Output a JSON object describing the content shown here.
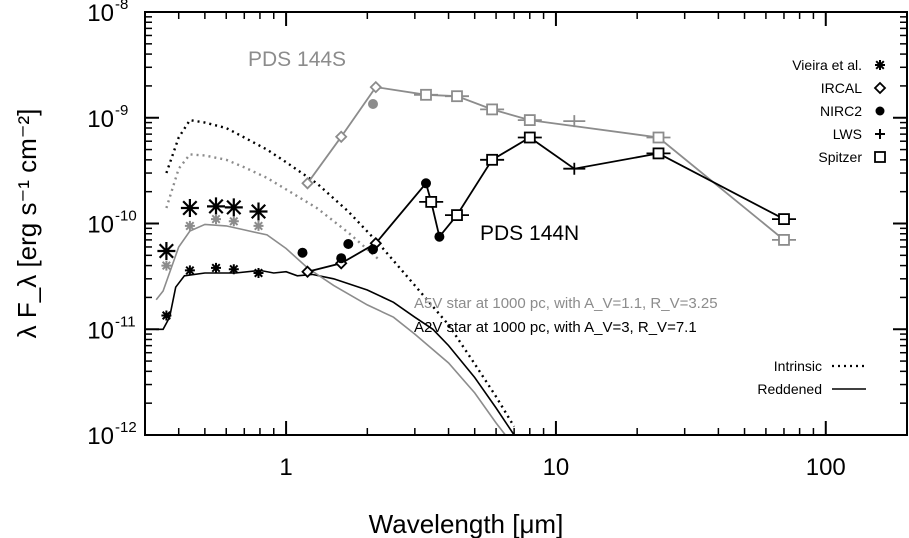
{
  "chart_data": {
    "type": "scatter",
    "xlabel": "Wavelength [μm]",
    "ylabel": "λ F_λ [erg s⁻¹ cm⁻²]",
    "xscale": "log",
    "yscale": "log",
    "xlim": [
      0.3,
      200
    ],
    "ylim": [
      1e-12,
      1e-08
    ],
    "x_ticks": [
      1,
      10,
      100
    ],
    "x_tick_labels": [
      "1",
      "10",
      "100"
    ],
    "y_ticks": [
      1e-12,
      1e-11,
      1e-10,
      1e-09,
      1e-08
    ],
    "y_tick_labels": [
      {
        "base": "10",
        "exp": "-12"
      },
      {
        "base": "10",
        "exp": "-11"
      },
      {
        "base": "10",
        "exp": "-10"
      },
      {
        "base": "10",
        "exp": "-9"
      },
      {
        "base": "10",
        "exp": "-8"
      }
    ],
    "grid": false,
    "legend": {
      "position": "top-right",
      "markers": [
        {
          "label": "Vieira et al.",
          "symbol": "asterisk"
        },
        {
          "label": "IRCAL",
          "symbol": "diamond"
        },
        {
          "label": "NIRC2",
          "symbol": "circle"
        },
        {
          "label": "LWS",
          "symbol": "plus"
        },
        {
          "label": "Spitzer",
          "symbol": "square"
        }
      ],
      "lines": [
        {
          "label": "Intrinsic",
          "style": "dotted"
        },
        {
          "label": "Reddened",
          "style": "solid"
        }
      ]
    },
    "annotations": [
      {
        "text": "PDS 144S",
        "color": "#8c8c8c"
      },
      {
        "text": "PDS 144N",
        "color": "#000000"
      },
      {
        "text": "A5V star at 1000 pc, with A_V=1.1, R_V=3.25",
        "color": "#8c8c8c"
      },
      {
        "text": "A2V star at 1000 pc, with A_V=3, R_V=7.1",
        "color": "#000000"
      }
    ],
    "colors": {
      "pds144s": "#8c8c8c",
      "pds144n": "#000000"
    },
    "series": [
      {
        "name": "PDS 144S",
        "kind": "connected",
        "color": "#8c8c8c",
        "points": [
          [
            1.2,
            2.4e-10
          ],
          [
            1.6,
            6.6e-10
          ],
          [
            2.15,
            1.95e-09
          ],
          [
            3.3,
            1.65e-09
          ],
          [
            4.3,
            1.6e-09
          ],
          [
            5.8,
            1.2e-09
          ],
          [
            8.0,
            9.5e-10
          ],
          [
            24,
            6.5e-10
          ],
          [
            70,
            7e-11
          ]
        ],
        "markers": [
          {
            "x": 1.2,
            "y": 2.4e-10,
            "symbol": "diamond"
          },
          {
            "x": 1.6,
            "y": 6.6e-10,
            "symbol": "diamond"
          },
          {
            "x": 2.15,
            "y": 1.95e-09,
            "symbol": "diamond"
          },
          {
            "x": 2.1,
            "y": 1.35e-09,
            "symbol": "circle"
          },
          {
            "x": 3.3,
            "y": 1.65e-09,
            "symbol": "square"
          },
          {
            "x": 4.3,
            "y": 1.6e-09,
            "symbol": "square"
          },
          {
            "x": 5.8,
            "y": 1.2e-09,
            "symbol": "square"
          },
          {
            "x": 8.0,
            "y": 9.5e-10,
            "symbol": "square"
          },
          {
            "x": 11.7,
            "y": 9.3e-10,
            "symbol": "plus"
          },
          {
            "x": 24,
            "y": 6.5e-10,
            "symbol": "square"
          },
          {
            "x": 70,
            "y": 7e-11,
            "symbol": "square"
          }
        ]
      },
      {
        "name": "PDS 144N",
        "kind": "connected",
        "color": "#000000",
        "points": [
          [
            1.2,
            3.5e-11
          ],
          [
            1.6,
            4.2e-11
          ],
          [
            2.15,
            6.5e-11
          ],
          [
            3.3,
            2.4e-10
          ],
          [
            3.45,
            1.6e-10
          ],
          [
            3.7,
            7.5e-11
          ],
          [
            4.3,
            1.2e-10
          ],
          [
            5.8,
            4e-10
          ],
          [
            8.0,
            6.5e-10
          ],
          [
            11.7,
            3.3e-10
          ],
          [
            24,
            4.6e-10
          ],
          [
            70,
            1.1e-10
          ]
        ],
        "markers": [
          {
            "x": 1.2,
            "y": 3.5e-11,
            "symbol": "diamond"
          },
          {
            "x": 1.6,
            "y": 4.2e-11,
            "symbol": "diamond"
          },
          {
            "x": 2.15,
            "y": 6.5e-11,
            "symbol": "diamond"
          },
          {
            "x": 3.3,
            "y": 2.4e-10,
            "symbol": "circle"
          },
          {
            "x": 3.7,
            "y": 7.5e-11,
            "symbol": "circle"
          },
          {
            "x": 3.45,
            "y": 1.6e-10,
            "symbol": "square"
          },
          {
            "x": 4.3,
            "y": 1.2e-10,
            "symbol": "square"
          },
          {
            "x": 5.8,
            "y": 4e-10,
            "symbol": "square"
          },
          {
            "x": 8.0,
            "y": 6.5e-10,
            "symbol": "square"
          },
          {
            "x": 11.7,
            "y": 3.3e-10,
            "symbol": "plus"
          },
          {
            "x": 24,
            "y": 4.6e-10,
            "symbol": "square"
          },
          {
            "x": 70,
            "y": 1.1e-10,
            "symbol": "square"
          }
        ]
      },
      {
        "name": "NIRC2 extra",
        "kind": "markers",
        "color": "#000000",
        "markers": [
          {
            "x": 1.15,
            "y": 5.3e-11,
            "symbol": "circle"
          },
          {
            "x": 1.6,
            "y": 4.7e-11,
            "symbol": "circle"
          },
          {
            "x": 1.7,
            "y": 6.4e-11,
            "symbol": "circle"
          },
          {
            "x": 2.1,
            "y": 5.7e-11,
            "symbol": "circle"
          }
        ]
      },
      {
        "name": "Vieira et al. (PDS 144N)",
        "kind": "markers",
        "color": "#000000",
        "markers": [
          {
            "x": 0.36,
            "y": 5.5e-11,
            "symbol": "asterisk-large"
          },
          {
            "x": 0.44,
            "y": 1.4e-10,
            "symbol": "asterisk-large"
          },
          {
            "x": 0.55,
            "y": 1.45e-10,
            "symbol": "asterisk-large"
          },
          {
            "x": 0.64,
            "y": 1.42e-10,
            "symbol": "asterisk-large"
          },
          {
            "x": 0.79,
            "y": 1.3e-10,
            "symbol": "asterisk-large"
          },
          {
            "x": 0.36,
            "y": 1.35e-11,
            "symbol": "asterisk"
          },
          {
            "x": 0.44,
            "y": 3.6e-11,
            "symbol": "asterisk"
          },
          {
            "x": 0.55,
            "y": 3.8e-11,
            "symbol": "asterisk"
          },
          {
            "x": 0.64,
            "y": 3.7e-11,
            "symbol": "asterisk"
          },
          {
            "x": 0.79,
            "y": 3.4e-11,
            "symbol": "asterisk"
          }
        ]
      },
      {
        "name": "Vieira et al. (PDS 144S)",
        "kind": "markers",
        "color": "#8c8c8c",
        "markers": [
          {
            "x": 0.36,
            "y": 4e-11,
            "symbol": "asterisk"
          },
          {
            "x": 0.44,
            "y": 9.5e-11,
            "symbol": "asterisk"
          },
          {
            "x": 0.55,
            "y": 1.1e-10,
            "symbol": "asterisk"
          },
          {
            "x": 0.64,
            "y": 1.05e-10,
            "symbol": "asterisk"
          },
          {
            "x": 0.79,
            "y": 9.5e-11,
            "symbol": "asterisk"
          }
        ]
      }
    ],
    "model_curves": [
      {
        "name": "A2V intrinsic",
        "color": "#000000",
        "style": "dotted",
        "points": [
          [
            0.36,
            3e-10
          ],
          [
            0.4,
            6.5e-10
          ],
          [
            0.44,
            9.5e-10
          ],
          [
            0.5,
            9e-10
          ],
          [
            0.6,
            8e-10
          ],
          [
            0.7,
            6.5e-10
          ],
          [
            0.85,
            5e-10
          ],
          [
            1.0,
            3.8e-10
          ],
          [
            1.3,
            2.4e-10
          ],
          [
            1.7,
            1.3e-10
          ],
          [
            2.2,
            6.5e-11
          ],
          [
            3.0,
            2.6e-11
          ],
          [
            4.0,
            1.1e-11
          ],
          [
            5.0,
            4.7e-12
          ],
          [
            6.0,
            2.3e-12
          ],
          [
            7.0,
            1.2e-12
          ]
        ]
      },
      {
        "name": "A5V intrinsic",
        "color": "#8c8c8c",
        "style": "dotted",
        "points": [
          [
            0.36,
            1.4e-10
          ],
          [
            0.4,
            3.3e-10
          ],
          [
            0.44,
            4.5e-10
          ],
          [
            0.5,
            4.4e-10
          ],
          [
            0.6,
            4e-10
          ],
          [
            0.7,
            3.4e-10
          ],
          [
            0.85,
            2.7e-10
          ],
          [
            1.0,
            2.1e-10
          ],
          [
            1.3,
            1.4e-10
          ],
          [
            1.7,
            8.2e-11
          ],
          [
            2.2,
            4.6e-11
          ]
        ]
      },
      {
        "name": "A2V reddened",
        "color": "#000000",
        "style": "solid",
        "points": [
          [
            0.33,
            1e-11
          ],
          [
            0.35,
            1e-11
          ],
          [
            0.37,
            1.3e-11
          ],
          [
            0.39,
            2.5e-11
          ],
          [
            0.42,
            3.2e-11
          ],
          [
            0.5,
            3.4e-11
          ],
          [
            0.65,
            3.4e-11
          ],
          [
            0.8,
            3.6e-11
          ],
          [
            0.9,
            3.4e-11
          ],
          [
            1.0,
            3.5e-11
          ],
          [
            1.1,
            3.2e-11
          ],
          [
            1.25,
            3.3e-11
          ],
          [
            1.5,
            3e-11
          ],
          [
            2.0,
            2.35e-11
          ],
          [
            2.5,
            1.8e-11
          ],
          [
            3.0,
            1.3e-11
          ],
          [
            3.5,
            1e-11
          ],
          [
            4.0,
            7e-12
          ],
          [
            5.0,
            3.5e-12
          ],
          [
            6.0,
            1.8e-12
          ],
          [
            7.0,
            1e-12
          ]
        ]
      },
      {
        "name": "A5V reddened",
        "color": "#8c8c8c",
        "style": "solid",
        "points": [
          [
            0.33,
            1.9e-11
          ],
          [
            0.35,
            2.3e-11
          ],
          [
            0.4,
            6e-11
          ],
          [
            0.44,
            8.5e-11
          ],
          [
            0.5,
            9.8e-11
          ],
          [
            0.6,
            9.5e-11
          ],
          [
            0.7,
            8.7e-11
          ],
          [
            0.85,
            7.8e-11
          ],
          [
            1.0,
            5.8e-11
          ],
          [
            1.2,
            3.8e-11
          ],
          [
            1.5,
            2.6e-11
          ],
          [
            2.0,
            1.7e-11
          ],
          [
            2.5,
            1.3e-11
          ],
          [
            3.0,
            9e-12
          ],
          [
            4.0,
            4.8e-12
          ],
          [
            5.0,
            2.5e-12
          ],
          [
            6.0,
            1.3e-12
          ],
          [
            6.5,
            1e-12
          ]
        ]
      }
    ]
  }
}
